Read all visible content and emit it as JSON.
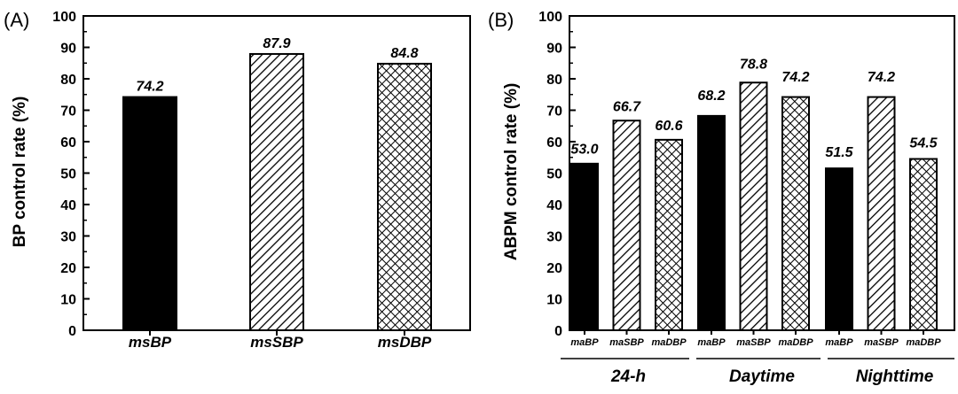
{
  "chart_data": [
    {
      "type": "bar",
      "panel_label": "(A)",
      "ylabel": "BP control rate (%)",
      "ylim": [
        0,
        100
      ],
      "yticks": [
        0,
        10,
        20,
        30,
        40,
        50,
        60,
        70,
        80,
        90,
        100
      ],
      "categories": [
        "msBP",
        "msSBP",
        "msDBP"
      ],
      "values": [
        74.2,
        87.9,
        84.8
      ],
      "value_labels": [
        "74.2",
        "87.9",
        "84.8"
      ],
      "fills": [
        "solid",
        "hatch",
        "crosshatch"
      ],
      "grid": false
    },
    {
      "type": "bar",
      "panel_label": "(B)",
      "ylabel": "ABPM control rate (%)",
      "ylim": [
        0,
        100
      ],
      "yticks": [
        0,
        10,
        20,
        30,
        40,
        50,
        60,
        70,
        80,
        90,
        100
      ],
      "groups": [
        {
          "label": "24-h",
          "categories": [
            "maBP",
            "maSBP",
            "maDBP"
          ],
          "values": [
            53.0,
            66.7,
            60.6
          ],
          "value_labels": [
            "53.0",
            "66.7",
            "60.6"
          ],
          "value_label_y": [
            56.2,
            69.7,
            63.6
          ]
        },
        {
          "label": "Daytime",
          "categories": [
            "maBP",
            "maSBP",
            "maDBP"
          ],
          "values": [
            68.2,
            78.8,
            74.2
          ],
          "value_labels": [
            "68.2",
            "78.8",
            "74.2"
          ],
          "value_label_y": [
            73.2,
            83.2,
            79.2
          ]
        },
        {
          "label": "Nighttime",
          "categories": [
            "maBP",
            "maSBP",
            "maDBP"
          ],
          "values": [
            51.5,
            74.2,
            54.5
          ],
          "value_labels": [
            "51.5",
            "74.2",
            "54.5"
          ],
          "value_label_y": [
            55.2,
            79.2,
            58.2
          ]
        }
      ],
      "fills": [
        "solid",
        "hatch",
        "crosshatch"
      ],
      "grid": false
    }
  ],
  "colors": {
    "bar": "#000000",
    "background": "#ffffff"
  }
}
